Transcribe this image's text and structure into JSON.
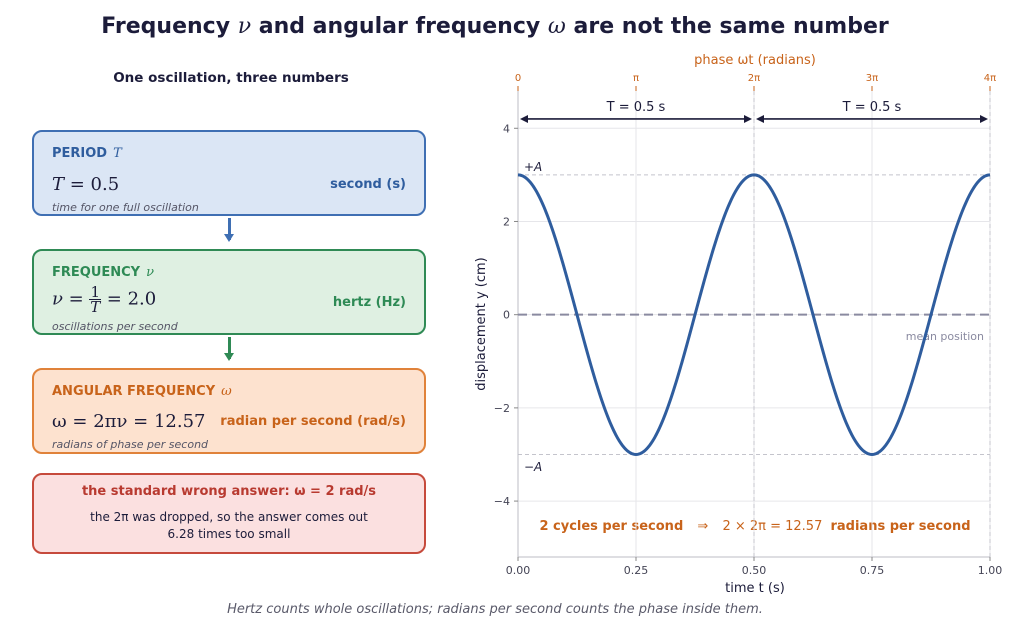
{
  "title": {
    "prefix": "Frequency",
    "nu": "ν",
    "mid": "and angular frequency",
    "omega": "ω",
    "suffix": "are not the same number"
  },
  "left_panel": {
    "subtitle": "One oscillation, three numbers",
    "period": {
      "heading": "PERIOD",
      "symbol": "T",
      "equation_lhs": "T",
      "equation_rhs": "= 0.5",
      "unit": "second  (s)",
      "note": "time for one full oscillation",
      "color": "#3f6fb3"
    },
    "frequency": {
      "heading": "FREQUENCY",
      "symbol": "ν",
      "equation_lhs": "ν =",
      "frac_num": "1",
      "frac_den": "T",
      "equation_rhs": "= 2.0",
      "unit": "hertz  (Hz)",
      "note": "oscillations per second",
      "color": "#2f8a55"
    },
    "angular": {
      "heading": "ANGULAR FREQUENCY",
      "symbol": "ω",
      "equation": "ω = 2πν = 12.57",
      "unit": "radian per second  (rad/s)",
      "note": "radians of phase per second",
      "color": "#e0823a"
    },
    "wrong": {
      "heading": "the standard wrong answer:  ω = 2 rad/s",
      "line1": "the 2π was dropped, so the answer comes out",
      "line2": "6.28 times too small",
      "color": "#c64a3c"
    }
  },
  "caption": "Hertz counts whole oscillations; radians per second counts the phase inside them.",
  "chart_data": {
    "type": "line",
    "x_label": "time  t  (s)",
    "y_label": "displacement  y  (cm)",
    "top_axis_label": "phase  ωt  (radians)",
    "x_range": [
      0,
      1.0
    ],
    "y_range": [
      -5.2,
      4.8
    ],
    "x_ticks": [
      "0.00",
      "0.25",
      "0.50",
      "0.75",
      "1.00"
    ],
    "y_ticks": [
      "-4",
      "-2",
      "0",
      "2",
      "4"
    ],
    "top_ticks": [
      "0",
      "π",
      "2π",
      "3π",
      "4π"
    ],
    "series": [
      {
        "function": "y = 3 cos(2π·2·t)",
        "amplitude": 3,
        "frequency_hz": 2,
        "color": "#2f5d9e"
      }
    ],
    "amplitude_labels": {
      "plus": "+A",
      "minus": "−A"
    },
    "mean_label": "mean position",
    "period_annotations": [
      "T = 0.5 s",
      "T = 0.5 s"
    ],
    "bottom_note": {
      "left": "2 cycles per second",
      "arrow": "⇒",
      "math": "2 × 2π = 12.57",
      "right": "radians per second"
    },
    "colors": {
      "curve": "#2f5d9e",
      "accent": "#c8631a",
      "grid": "#e6e6ea",
      "mean": "#8a8aa0"
    }
  }
}
